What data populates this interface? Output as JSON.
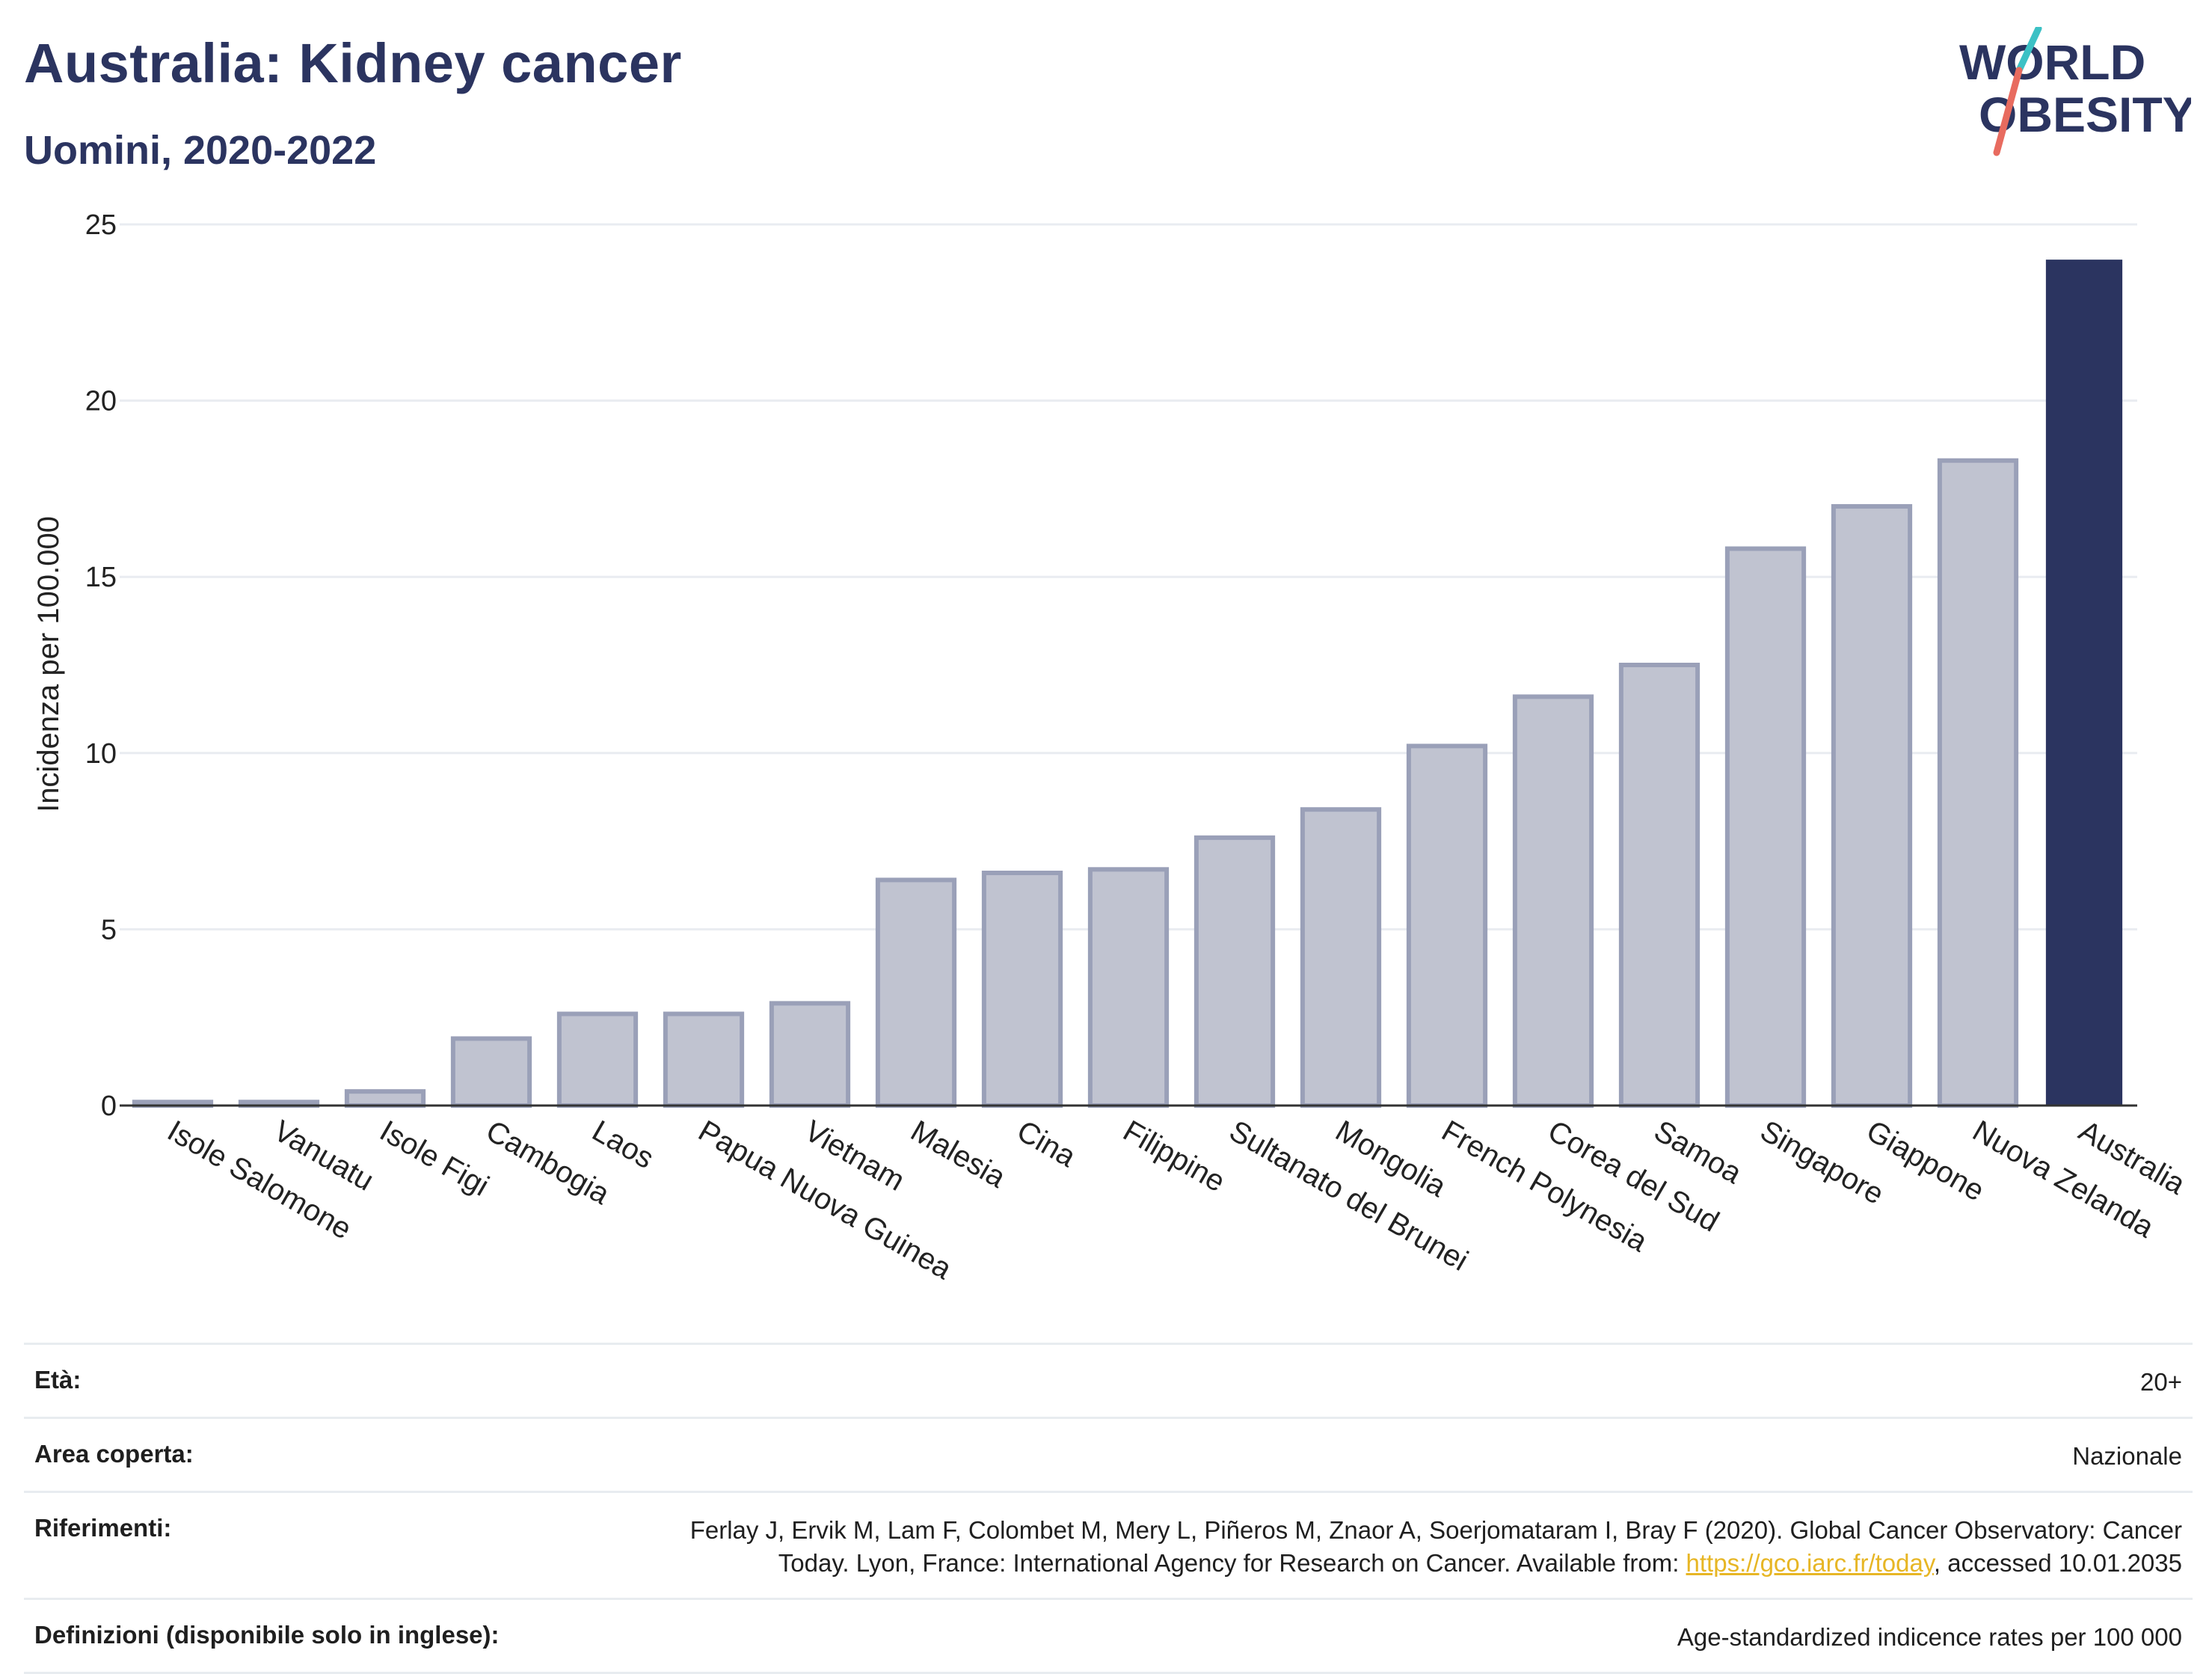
{
  "header": {
    "title": "Australia: Kidney cancer",
    "subtitle": "Uomini, 2020-2022"
  },
  "logo": {
    "line1": "WORLD",
    "line2": "OBESITY"
  },
  "colors": {
    "highlight": "#2b3460",
    "bar_fill": "#c0c3d0",
    "bar_stroke": "#9aa0b8",
    "accent_teal": "#3cc1c5",
    "accent_coral": "#e86b5f",
    "link": "#e7b625"
  },
  "chart_data": {
    "type": "bar",
    "title": "Australia: Kidney cancer",
    "subtitle": "Uomini, 2020-2022",
    "xlabel": "",
    "ylabel": "Incidenza per 100.000",
    "ylim": [
      0,
      25
    ],
    "yticks": [
      0,
      5,
      10,
      15,
      20,
      25
    ],
    "grid": true,
    "legend": "none",
    "categories": [
      "Isole Salomone",
      "Vanuatu",
      "Isole Figi",
      "Cambogia",
      "Laos",
      "Papua Nuova Guinea",
      "Vietnam",
      "Malesia",
      "Cina",
      "Filippine",
      "Sultanato del Brunei",
      "Mongolia",
      "French Polynesia",
      "Corea del Sud",
      "Samoa",
      "Singapore",
      "Giappone",
      "Nuova Zelanda",
      "Australia"
    ],
    "values": [
      0.1,
      0.1,
      0.4,
      1.9,
      2.6,
      2.6,
      2.9,
      6.4,
      6.6,
      6.7,
      7.6,
      8.4,
      10.2,
      11.6,
      12.5,
      15.8,
      17.0,
      18.3,
      24.0
    ],
    "highlight": "Australia"
  },
  "info": {
    "age_label": "Età:",
    "age_value": "20+",
    "area_label": "Area coperta:",
    "area_value": "Nazionale",
    "refs_label": "Riferimenti:",
    "refs_text_1": "Ferlay J, Ervik M, Lam F, Colombet M, Mery L, Piñeros M, Znaor A, Soerjomataram I, Bray F (2020). Global Cancer Observatory: Cancer Today. Lyon, France: International Agency for Research on Cancer. Available from: ",
    "refs_link": "https://gco.iarc.fr/today",
    "refs_text_2": ", accessed 10.01.2035",
    "defs_label": "Definizioni (disponibile solo in inglese):",
    "defs_value": "Age-standardized indicence rates per 100 000"
  }
}
